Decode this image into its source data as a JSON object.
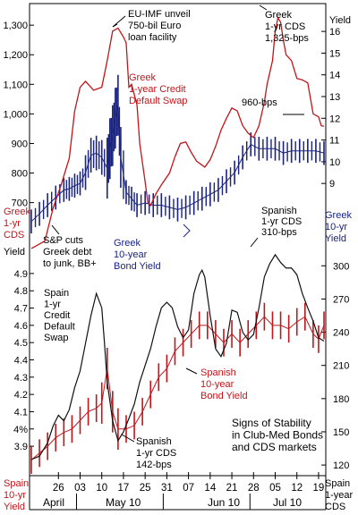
{
  "chart_data": [
    {
      "type": "line",
      "panel": "top",
      "series": [
        {
          "name": "Greek 1-year Credit Default Swap",
          "color": "#c0161b",
          "axis": "left",
          "values_desc": "CDS bps",
          "values": [
            [
              0,
              545
            ],
            [
              5,
              570
            ],
            [
              8,
              680
            ],
            [
              11,
              760
            ],
            [
              14,
              850
            ],
            [
              16,
              1010
            ],
            [
              18,
              1090
            ],
            [
              20,
              1110
            ],
            [
              23,
              1080
            ],
            [
              26,
              1090
            ],
            [
              28,
              1180
            ],
            [
              30,
              1280
            ],
            [
              32,
              1290
            ],
            [
              34,
              1260
            ],
            [
              35,
              1240
            ],
            [
              36,
              1090
            ],
            [
              37,
              1100
            ],
            [
              39,
              1030
            ],
            [
              40,
              900
            ],
            [
              42,
              770
            ],
            [
              43,
              700
            ],
            [
              44,
              690
            ],
            [
              46,
              730
            ],
            [
              48,
              760
            ],
            [
              51,
              800
            ],
            [
              53,
              855
            ],
            [
              55,
              900
            ],
            [
              57,
              905
            ],
            [
              59,
              870
            ],
            [
              61,
              840
            ],
            [
              64,
              820
            ],
            [
              66,
              845
            ],
            [
              68,
              890
            ],
            [
              70,
              945
            ],
            [
              72,
              985
            ],
            [
              74,
              1020
            ],
            [
              76,
              1010
            ],
            [
              78,
              960
            ],
            [
              80,
              935
            ],
            [
              82,
              920
            ],
            [
              84,
              960
            ],
            [
              86,
              1040
            ],
            [
              87,
              1100
            ],
            [
              89,
              1180
            ],
            [
              90,
              1280
            ],
            [
              91,
              1325
            ],
            [
              92,
              1310
            ],
            [
              93,
              1250
            ],
            [
              94,
              1200
            ],
            [
              96,
              1180
            ],
            [
              98,
              1120
            ],
            [
              100,
              1115
            ],
            [
              102,
              1105
            ],
            [
              104,
              1000
            ],
            [
              106,
              990
            ],
            [
              107,
              960
            ],
            [
              108,
              958
            ]
          ]
        },
        {
          "name": "Greek 10-year Bond Yield",
          "color": "#1a237e",
          "axis": "right",
          "values_desc": "yield %",
          "values": [
            [
              0,
              7.25
            ],
            [
              3,
              7.6
            ],
            [
              6,
              8.0
            ],
            [
              9,
              8.35
            ],
            [
              12,
              8.7
            ],
            [
              14,
              8.75
            ],
            [
              16,
              8.9
            ],
            [
              18,
              9.0
            ],
            [
              20,
              9.5
            ],
            [
              22,
              10.3
            ],
            [
              24,
              10.4
            ],
            [
              26,
              10.2
            ],
            [
              28,
              9.7
            ],
            [
              29,
              10.6
            ],
            [
              30,
              11.2
            ],
            [
              31,
              12.0
            ],
            [
              32,
              12.6
            ],
            [
              33,
              10.2
            ],
            [
              35,
              8.6
            ],
            [
              37,
              8.3
            ],
            [
              39,
              8.0
            ],
            [
              42,
              8.1
            ],
            [
              45,
              8.0
            ],
            [
              48,
              8.0
            ],
            [
              51,
              7.9
            ],
            [
              54,
              7.8
            ],
            [
              57,
              7.9
            ],
            [
              60,
              8.1
            ],
            [
              63,
              8.3
            ],
            [
              66,
              8.5
            ],
            [
              69,
              8.7
            ],
            [
              72,
              9.1
            ],
            [
              75,
              9.5
            ],
            [
              78,
              10.2
            ],
            [
              81,
              10.8
            ],
            [
              84,
              10.6
            ],
            [
              87,
              10.6
            ],
            [
              90,
              10.6
            ],
            [
              93,
              10.4
            ],
            [
              96,
              10.5
            ],
            [
              99,
              10.5
            ],
            [
              102,
              10.5
            ],
            [
              105,
              10.5
            ],
            [
              108,
              10.4
            ]
          ]
        }
      ],
      "left_axis": {
        "ticks": [
          "700",
          "800",
          "900",
          "1,000",
          "1,100",
          "1,200",
          "1,300"
        ],
        "ylim": [
          590,
          1370
        ]
      },
      "right_axis": {
        "title": "Yield",
        "ticks": [
          "9",
          "10",
          "11",
          "12",
          "13",
          "14",
          "15",
          "16"
        ],
        "ylim": [
          6.62,
          17.24
        ]
      },
      "annotations": {
        "eu_imf": [
          "EU-IMF unveil",
          "750-bil Euro",
          "loan facility"
        ],
        "greek_cds_peak": [
          "Greek",
          "1-yr CDS",
          "1,325-bps"
        ],
        "greek_cds_name": [
          "Greek",
          "1-year Credit",
          "Default Swap"
        ],
        "cds_960": "960-bps",
        "sp_cuts": [
          "S&P cuts",
          "Greek debt",
          "to junk, BB+"
        ],
        "greek_10y_name": [
          "Greek",
          "10-year",
          "Bond Yield"
        ],
        "greek_1yr_cds_axis": [
          "Greek",
          "1-yr",
          "CDS"
        ],
        "greek_10yr_yield_axis": [
          "Greek",
          "10-yr",
          "Yield"
        ]
      }
    },
    {
      "type": "line",
      "panel": "bottom",
      "series": [
        {
          "name": "Spain 1-yr Credit Default Swap",
          "color": "#111111",
          "axis": "right",
          "values_desc": "CDS bps",
          "values": [
            [
              0,
              125
            ],
            [
              3,
              128
            ],
            [
              6,
              140
            ],
            [
              8,
              155
            ],
            [
              10,
              165
            ],
            [
              12,
              160
            ],
            [
              14,
              170
            ],
            [
              16,
              190
            ],
            [
              18,
              205
            ],
            [
              20,
              230
            ],
            [
              22,
              255
            ],
            [
              24,
              275
            ],
            [
              26,
              262
            ],
            [
              27,
              230
            ],
            [
              28,
              195
            ],
            [
              30,
              160
            ],
            [
              32,
              142
            ],
            [
              34,
              150
            ],
            [
              36,
              162
            ],
            [
              38,
              175
            ],
            [
              40,
              195
            ],
            [
              42,
              210
            ],
            [
              44,
              225
            ],
            [
              46,
              245
            ],
            [
              48,
              262
            ],
            [
              50,
              267
            ],
            [
              52,
              262
            ],
            [
              54,
              245
            ],
            [
              56,
              235
            ],
            [
              58,
              242
            ],
            [
              60,
              275
            ],
            [
              62,
              292
            ],
            [
              63,
              296
            ],
            [
              64,
              290
            ],
            [
              66,
              255
            ],
            [
              68,
              225
            ],
            [
              70,
              218
            ],
            [
              72,
              230
            ],
            [
              74,
              260
            ],
            [
              76,
              258
            ],
            [
              78,
              240
            ],
            [
              80,
              233
            ],
            [
              82,
              238
            ],
            [
              84,
              262
            ],
            [
              86,
              290
            ],
            [
              88,
              302
            ],
            [
              90,
              310
            ],
            [
              92,
              303
            ],
            [
              94,
              298
            ],
            [
              96,
              298
            ],
            [
              98,
              292
            ],
            [
              100,
              275
            ],
            [
              102,
              262
            ],
            [
              104,
              250
            ],
            [
              106,
              235
            ],
            [
              108,
              232
            ]
          ]
        },
        {
          "name": "Spanish 10-year Bond Yield",
          "color": "#c0161b",
          "axis": "left",
          "values_desc": "yield %",
          "values": [
            [
              0,
              3.82
            ],
            [
              3,
              3.86
            ],
            [
              6,
              3.9
            ],
            [
              9,
              3.95
            ],
            [
              12,
              3.98
            ],
            [
              15,
              4.0
            ],
            [
              18,
              4.05
            ],
            [
              21,
              4.1
            ],
            [
              24,
              4.12
            ],
            [
              26,
              4.15
            ],
            [
              28,
              4.35
            ],
            [
              30,
              4.1
            ],
            [
              32,
              4.0
            ],
            [
              35,
              4.0
            ],
            [
              38,
              4.02
            ],
            [
              41,
              4.1
            ],
            [
              44,
              4.2
            ],
            [
              47,
              4.3
            ],
            [
              50,
              4.35
            ],
            [
              53,
              4.45
            ],
            [
              56,
              4.5
            ],
            [
              59,
              4.55
            ],
            [
              62,
              4.6
            ],
            [
              65,
              4.6
            ],
            [
              68,
              4.55
            ],
            [
              71,
              4.5
            ],
            [
              74,
              4.55
            ],
            [
              77,
              4.5
            ],
            [
              80,
              4.55
            ],
            [
              83,
              4.6
            ],
            [
              86,
              4.65
            ],
            [
              89,
              4.6
            ],
            [
              92,
              4.6
            ],
            [
              95,
              4.58
            ],
            [
              98,
              4.62
            ],
            [
              101,
              4.65
            ],
            [
              104,
              4.55
            ],
            [
              106,
              4.52
            ],
            [
              108,
              4.6
            ]
          ]
        }
      ],
      "left_axis": {
        "title": "Yield",
        "ticks": [
          "3.9",
          "4%",
          "4.1",
          "4.2",
          "4.3",
          "4.4",
          "4.5",
          "4.6",
          "4.7",
          "4.8",
          "4.9"
        ],
        "ylim": [
          3.74,
          5.06
        ]
      },
      "right_axis": {
        "ticks": [
          "120",
          "150",
          "180",
          "210",
          "240",
          "270",
          "300"
        ],
        "ylim": [
          112,
          318
        ]
      },
      "annotations": {
        "spanish_cds_peak": [
          "Spanish",
          "1-yr CDS",
          "310-bps"
        ],
        "spain_cds_name": [
          "Spain",
          "1-yr",
          "Credit",
          "Default",
          "Swap"
        ],
        "spanish_10y_name": [
          "Spanish",
          "10-year",
          "Bond Yield"
        ],
        "spanish_cds_low": [
          "Spanish",
          "1-yr CDS",
          "142-bps"
        ],
        "signs": [
          "Signs of Stability",
          "in Club-Med Bonds",
          "and CDS markets"
        ],
        "spain_10yr_yield_axis": [
          "Spain",
          "10-yr",
          "Yield"
        ],
        "spain_1yr_cds_axis": [
          "Spain",
          "1-year",
          "CDS"
        ]
      }
    }
  ],
  "x_axis": {
    "ticks": [
      "26",
      "03",
      "10",
      "17",
      "25",
      "31",
      "07",
      "14",
      "21",
      "28",
      "05",
      "12",
      "19"
    ],
    "months": [
      "April",
      "May 10",
      "Jun 10",
      "Jul 10"
    ]
  }
}
